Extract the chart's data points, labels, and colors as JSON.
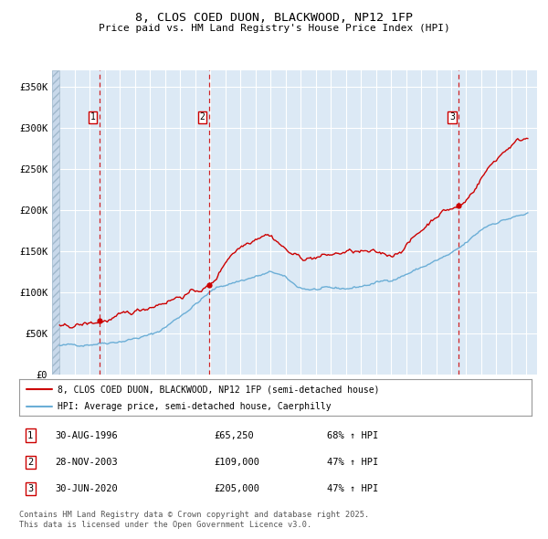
{
  "title": "8, CLOS COED DUON, BLACKWOOD, NP12 1FP",
  "subtitle": "Price paid vs. HM Land Registry's House Price Index (HPI)",
  "legend_line1": "8, CLOS COED DUON, BLACKWOOD, NP12 1FP (semi-detached house)",
  "legend_line2": "HPI: Average price, semi-detached house, Caerphilly",
  "footer1": "Contains HM Land Registry data © Crown copyright and database right 2025.",
  "footer2": "This data is licensed under the Open Government Licence v3.0.",
  "purchases": [
    {
      "label": "1",
      "date": "30-AUG-1996",
      "price": 65250,
      "pct": "68% ↑ HPI",
      "x_year": 1996.66
    },
    {
      "label": "2",
      "date": "28-NOV-2003",
      "price": 109000,
      "pct": "47% ↑ HPI",
      "x_year": 2003.91
    },
    {
      "label": "3",
      "date": "30-JUN-2020",
      "price": 205000,
      "pct": "47% ↑ HPI",
      "x_year": 2020.5
    }
  ],
  "hpi_color": "#6baed6",
  "price_color": "#cc0000",
  "bg_color": "#dce9f5",
  "grid_color": "#ffffff",
  "dashed_line_color": "#cc0000",
  "ylim": [
    0,
    370000
  ],
  "xlim_start": 1993.5,
  "xlim_end": 2025.7,
  "yticks": [
    0,
    50000,
    100000,
    150000,
    200000,
    250000,
    300000,
    350000
  ],
  "ytick_labels": [
    "£0",
    "£50K",
    "£100K",
    "£150K",
    "£200K",
    "£250K",
    "£300K",
    "£350K"
  ],
  "xticks": [
    1994,
    1995,
    1996,
    1997,
    1998,
    1999,
    2000,
    2001,
    2002,
    2003,
    2004,
    2005,
    2006,
    2007,
    2008,
    2009,
    2010,
    2011,
    2012,
    2013,
    2014,
    2015,
    2016,
    2017,
    2018,
    2019,
    2020,
    2021,
    2022,
    2023,
    2024,
    2025
  ]
}
